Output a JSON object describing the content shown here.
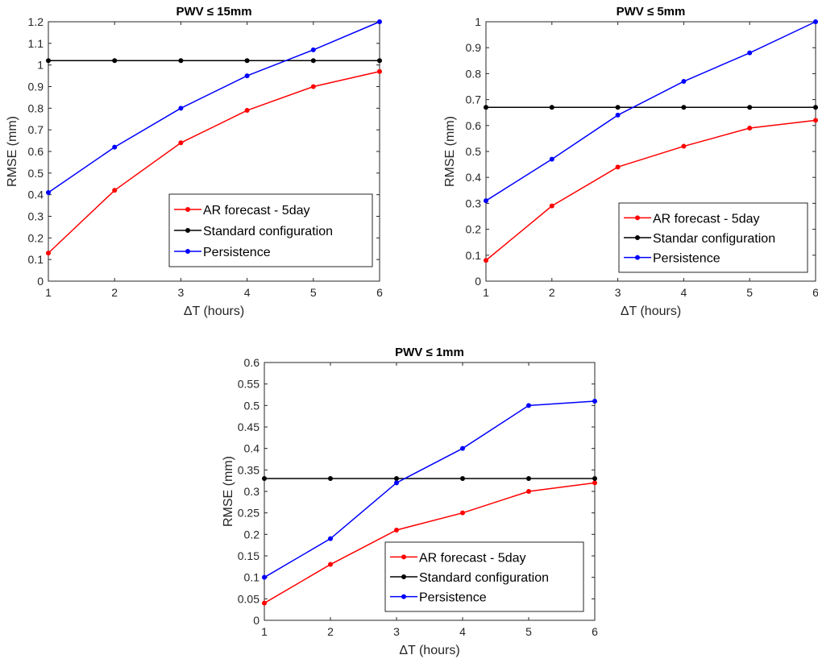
{
  "colors": {
    "ar": "#ff0000",
    "standard": "#000000",
    "persistence": "#0000ff"
  },
  "chart_data": [
    {
      "type": "line",
      "title": "PWV ≤ 15mm",
      "xlabel": "ΔT (hours)",
      "ylabel": "RMSE (mm)",
      "xlim": [
        1,
        6
      ],
      "ylim": [
        0,
        1.2
      ],
      "xticks": [
        1,
        2,
        3,
        4,
        5,
        6
      ],
      "yticks": [
        0,
        0.1,
        0.2,
        0.3,
        0.4,
        0.5,
        0.6,
        0.7,
        0.8,
        0.9,
        1,
        1.1,
        1.2
      ],
      "x": [
        1,
        2,
        3,
        4,
        5,
        6
      ],
      "legend_position": "bottom-right",
      "series": [
        {
          "name": "AR forecast - 5day",
          "color": "#ff0000",
          "values": [
            0.13,
            0.42,
            0.64,
            0.79,
            0.9,
            0.97
          ]
        },
        {
          "name": "Standard configuration",
          "color": "#000000",
          "values": [
            1.02,
            1.02,
            1.02,
            1.02,
            1.02,
            1.02
          ]
        },
        {
          "name": "Persistence",
          "color": "#0000ff",
          "values": [
            0.41,
            0.62,
            0.8,
            0.95,
            1.07,
            1.2
          ]
        }
      ]
    },
    {
      "type": "line",
      "title": "PWV ≤ 5mm",
      "xlabel": "ΔT (hours)",
      "ylabel": "RMSE (mm)",
      "xlim": [
        1,
        6
      ],
      "ylim": [
        0,
        1
      ],
      "xticks": [
        1,
        2,
        3,
        4,
        5,
        6
      ],
      "yticks": [
        0,
        0.1,
        0.2,
        0.3,
        0.4,
        0.5,
        0.6,
        0.7,
        0.8,
        0.9,
        1
      ],
      "x": [
        1,
        2,
        3,
        4,
        5,
        6
      ],
      "legend_position": "bottom-right",
      "series": [
        {
          "name": "AR forecast - 5day",
          "color": "#ff0000",
          "values": [
            0.08,
            0.29,
            0.44,
            0.52,
            0.59,
            0.62
          ]
        },
        {
          "name": "Standar configuration",
          "color": "#000000",
          "values": [
            0.67,
            0.67,
            0.67,
            0.67,
            0.67,
            0.67
          ]
        },
        {
          "name": "Persistence",
          "color": "#0000ff",
          "values": [
            0.31,
            0.47,
            0.64,
            0.77,
            0.88,
            1.0
          ]
        }
      ]
    },
    {
      "type": "line",
      "title": "PWV ≤ 1mm",
      "xlabel": "ΔT (hours)",
      "ylabel": "RMSE (mm)",
      "xlim": [
        1,
        6
      ],
      "ylim": [
        0,
        0.6
      ],
      "xticks": [
        1,
        2,
        3,
        4,
        5,
        6
      ],
      "yticks": [
        0,
        0.05,
        0.1,
        0.15,
        0.2,
        0.25,
        0.3,
        0.35,
        0.4,
        0.45,
        0.5,
        0.55,
        0.6
      ],
      "x": [
        1,
        2,
        3,
        4,
        5,
        6
      ],
      "legend_position": "bottom-right",
      "series": [
        {
          "name": "AR forecast - 5day",
          "color": "#ff0000",
          "values": [
            0.04,
            0.13,
            0.21,
            0.25,
            0.3,
            0.32
          ]
        },
        {
          "name": "Standard configuration",
          "color": "#000000",
          "values": [
            0.33,
            0.33,
            0.33,
            0.33,
            0.33,
            0.33
          ]
        },
        {
          "name": "Persistence",
          "color": "#0000ff",
          "values": [
            0.1,
            0.19,
            0.32,
            0.4,
            0.5,
            0.51
          ]
        }
      ]
    }
  ]
}
